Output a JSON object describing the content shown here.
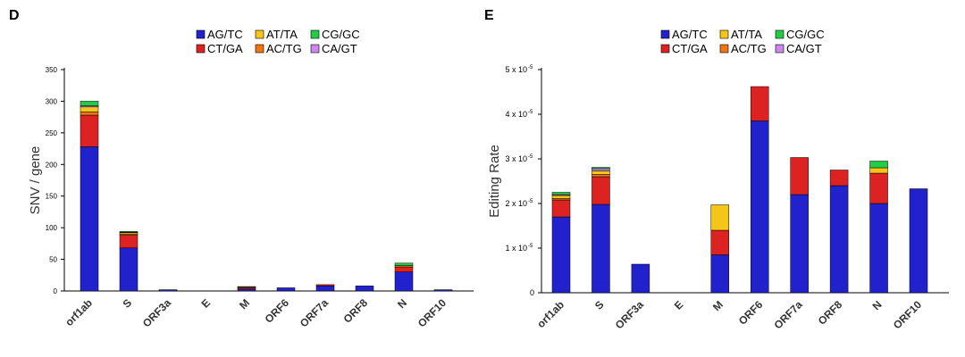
{
  "panels": {
    "D": {
      "letter": "D"
    },
    "E": {
      "letter": "E"
    }
  },
  "legend": [
    {
      "label": "AG/TC",
      "color": "#2222cc"
    },
    {
      "label": "AT/TA",
      "color": "#f5c518"
    },
    {
      "label": "CG/GC",
      "color": "#22cc44"
    },
    {
      "label": "CT/GA",
      "color": "#dd2222"
    },
    {
      "label": "AC/TG",
      "color": "#ee7711"
    },
    {
      "label": "CA/GT",
      "color": "#cc88ee"
    }
  ],
  "chart_data": [
    {
      "id": "D",
      "type": "bar",
      "stacked": true,
      "title": "",
      "xlabel": "",
      "ylabel": "SNV / gene",
      "ylim": [
        0,
        350
      ],
      "yticks": [
        0,
        50,
        100,
        150,
        200,
        250,
        300,
        350
      ],
      "ytick_labels": [
        "0",
        "50",
        "100",
        "150",
        "200",
        "250",
        "300",
        "350"
      ],
      "categories": [
        "orf1ab",
        "S",
        "ORF3a",
        "E",
        "M",
        "ORF6",
        "ORF7a",
        "ORF8",
        "N",
        "ORF10"
      ],
      "series": [
        {
          "name": "AG/TC",
          "values": [
            228,
            68,
            2,
            0,
            3,
            5,
            8,
            8,
            30,
            2
          ]
        },
        {
          "name": "CT/GA",
          "values": [
            50,
            20,
            0,
            0,
            2,
            0,
            2,
            0,
            8,
            0
          ]
        },
        {
          "name": "AC/TG",
          "values": [
            5,
            2,
            0,
            0,
            1,
            0,
            0,
            0,
            2,
            0
          ]
        },
        {
          "name": "AT/TA",
          "values": [
            8,
            2,
            0,
            0,
            1,
            0,
            0,
            0,
            0,
            0
          ]
        },
        {
          "name": "CA/GT",
          "values": [
            2,
            1,
            0,
            0,
            0,
            0,
            0,
            0,
            0,
            0
          ]
        },
        {
          "name": "CG/GC",
          "values": [
            7,
            1,
            0,
            0,
            0,
            0,
            0,
            0,
            4,
            0
          ]
        }
      ]
    },
    {
      "id": "E",
      "type": "bar",
      "stacked": true,
      "title": "",
      "xlabel": "",
      "ylabel": "Editing Rate",
      "ylim": [
        0,
        5
      ],
      "yunit_exponent": "-5",
      "yticks": [
        0,
        1,
        2,
        3,
        4,
        5
      ],
      "ytick_labels": [
        "0",
        "1 x 10",
        "2 x 10",
        "3 x 10",
        "4 x 10",
        "5 x 10"
      ],
      "categories": [
        "orf1ab",
        "S",
        "ORF3a",
        "E",
        "M",
        "ORF6",
        "ORF7a",
        "ORF8",
        "N",
        "ORF10"
      ],
      "series": [
        {
          "name": "AG/TC",
          "values": [
            1.7,
            1.98,
            0.64,
            0,
            0.85,
            3.85,
            2.2,
            2.4,
            2.0,
            2.33
          ]
        },
        {
          "name": "CT/GA",
          "values": [
            0.38,
            0.62,
            0,
            0,
            0.55,
            0.77,
            0.83,
            0.35,
            0.68,
            0
          ]
        },
        {
          "name": "AC/TG",
          "values": [
            0.03,
            0.05,
            0,
            0,
            0,
            0,
            0,
            0,
            0,
            0
          ]
        },
        {
          "name": "AT/TA",
          "values": [
            0.07,
            0.08,
            0,
            0,
            0.57,
            0,
            0,
            0,
            0.12,
            0
          ]
        },
        {
          "name": "CA/GT",
          "values": [
            0.02,
            0.05,
            0,
            0,
            0,
            0,
            0,
            0,
            0,
            0
          ]
        },
        {
          "name": "CG/GC",
          "values": [
            0.05,
            0.03,
            0,
            0,
            0,
            0,
            0,
            0,
            0.15,
            0
          ]
        }
      ]
    }
  ]
}
